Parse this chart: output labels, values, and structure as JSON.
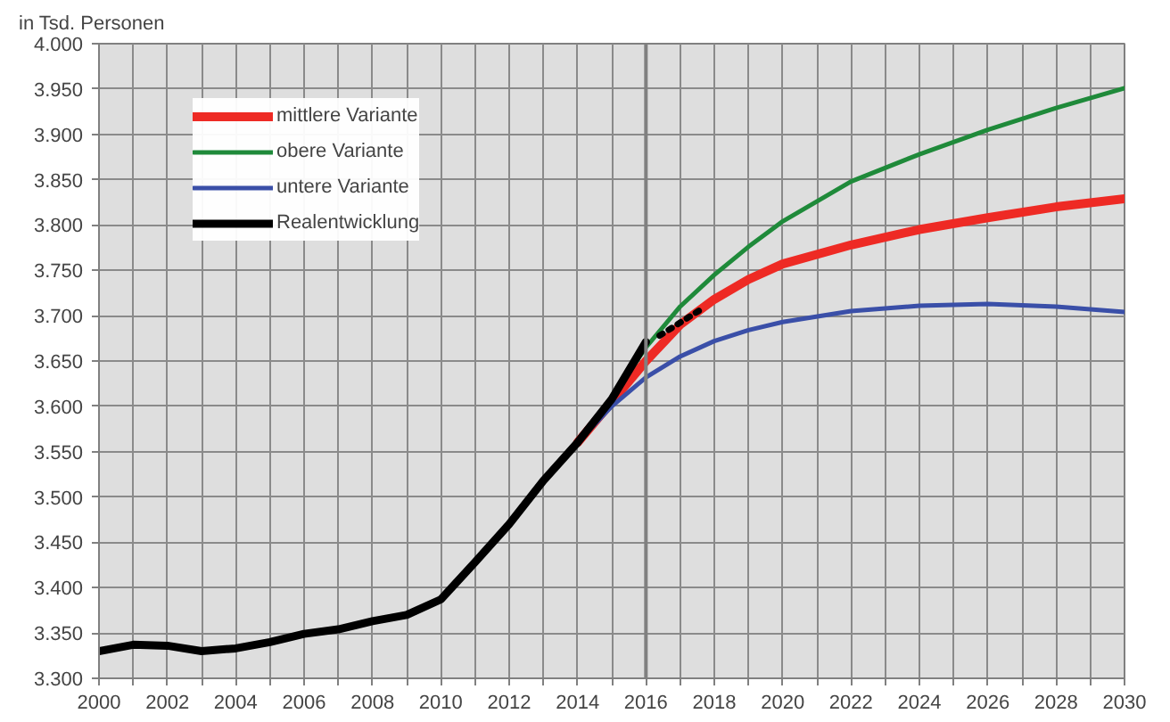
{
  "chart_data": {
    "type": "line",
    "ylabel": "in Tsd. Personen",
    "xlim": [
      2000,
      2030
    ],
    "ylim": [
      3300,
      4000
    ],
    "xticks": [
      2000,
      {
        "value": 2001,
        "label": null
      },
      2002,
      {
        "value": 2003,
        "label": null
      },
      2004,
      {
        "value": 2005,
        "label": null
      },
      2006,
      {
        "value": 2007,
        "label": null
      },
      2008,
      {
        "value": 2009,
        "label": null
      },
      2010,
      {
        "value": 2011,
        "label": null
      },
      2012,
      {
        "value": 2013,
        "label": null
      },
      2014,
      {
        "value": 2015,
        "label": null
      },
      2016,
      {
        "value": 2017,
        "label": null
      },
      2018,
      {
        "value": 2019,
        "label": null
      },
      2020,
      {
        "value": 2021,
        "label": null
      },
      2022,
      {
        "value": 2023,
        "label": null
      },
      2024,
      {
        "value": 2025,
        "label": null
      },
      2026,
      {
        "value": 2027,
        "label": null
      },
      2028,
      {
        "value": 2029,
        "label": null
      },
      2030
    ],
    "yticks": [
      {
        "value": 3300,
        "label": "3.300"
      },
      {
        "value": 3350,
        "label": "3.350"
      },
      {
        "value": 3400,
        "label": "3.400"
      },
      {
        "value": 3450,
        "label": "3.450"
      },
      {
        "value": 3500,
        "label": "3.500"
      },
      {
        "value": 3550,
        "label": "3.550"
      },
      {
        "value": 3600,
        "label": "3.600"
      },
      {
        "value": 3650,
        "label": "3.650"
      },
      {
        "value": 3700,
        "label": "3.700"
      },
      {
        "value": 3750,
        "label": "3.750"
      },
      {
        "value": 3800,
        "label": "3.800"
      },
      {
        "value": 3850,
        "label": "3.850"
      },
      {
        "value": 3900,
        "label": "3.900"
      },
      {
        "value": 3950,
        "label": "3.950"
      },
      {
        "value": 4000,
        "label": "4.000"
      }
    ],
    "grid": true,
    "legend": "top left",
    "ref_lines": [
      {
        "axis": "x",
        "value": 2016,
        "color": "#808080"
      }
    ],
    "series": [
      {
        "name": "mittlere Variante",
        "color": "#ee2a24",
        "x": [
          2014,
          2015,
          2016,
          2017,
          2018,
          2019,
          2020,
          2022,
          2024,
          2026,
          2028,
          2030
        ],
        "values": [
          3560,
          3605,
          3650,
          3690,
          3718,
          3740,
          3757,
          3778,
          3795,
          3808,
          3820,
          3829
        ]
      },
      {
        "name": "obere Variante",
        "color": "#1f8a3a",
        "x": [
          2014,
          2015,
          2016,
          2017,
          2018,
          2019,
          2020,
          2022,
          2024,
          2026,
          2028,
          2030
        ],
        "values": [
          3560,
          3610,
          3665,
          3710,
          3745,
          3776,
          3804,
          3848,
          3878,
          3905,
          3929,
          3951
        ]
      },
      {
        "name": "untere Variante",
        "color": "#3a4fa8",
        "x": [
          2014,
          2015,
          2016,
          2017,
          2018,
          2019,
          2020,
          2022,
          2024,
          2026,
          2028,
          2030
        ],
        "values": [
          3560,
          3600,
          3632,
          3655,
          3672,
          3684,
          3693,
          3705,
          3711,
          3713,
          3710,
          3704
        ]
      },
      {
        "name": "Realentwicklung",
        "color": "#000000",
        "x": [
          2000,
          2001,
          2002,
          2003,
          2004,
          2005,
          2006,
          2007,
          2008,
          2009,
          2010,
          2011,
          2012,
          2013,
          2014,
          2015,
          2016
        ],
        "values": [
          3330,
          3337,
          3336,
          3330,
          3333,
          3340,
          3349,
          3354,
          3363,
          3370,
          3387,
          3428,
          3470,
          3518,
          3560,
          3608,
          3671
        ]
      },
      {
        "color": "#000000",
        "line_style": "dotted",
        "x": [
          2016.4,
          2017.7
        ],
        "values": [
          3678,
          3709
        ]
      }
    ]
  }
}
